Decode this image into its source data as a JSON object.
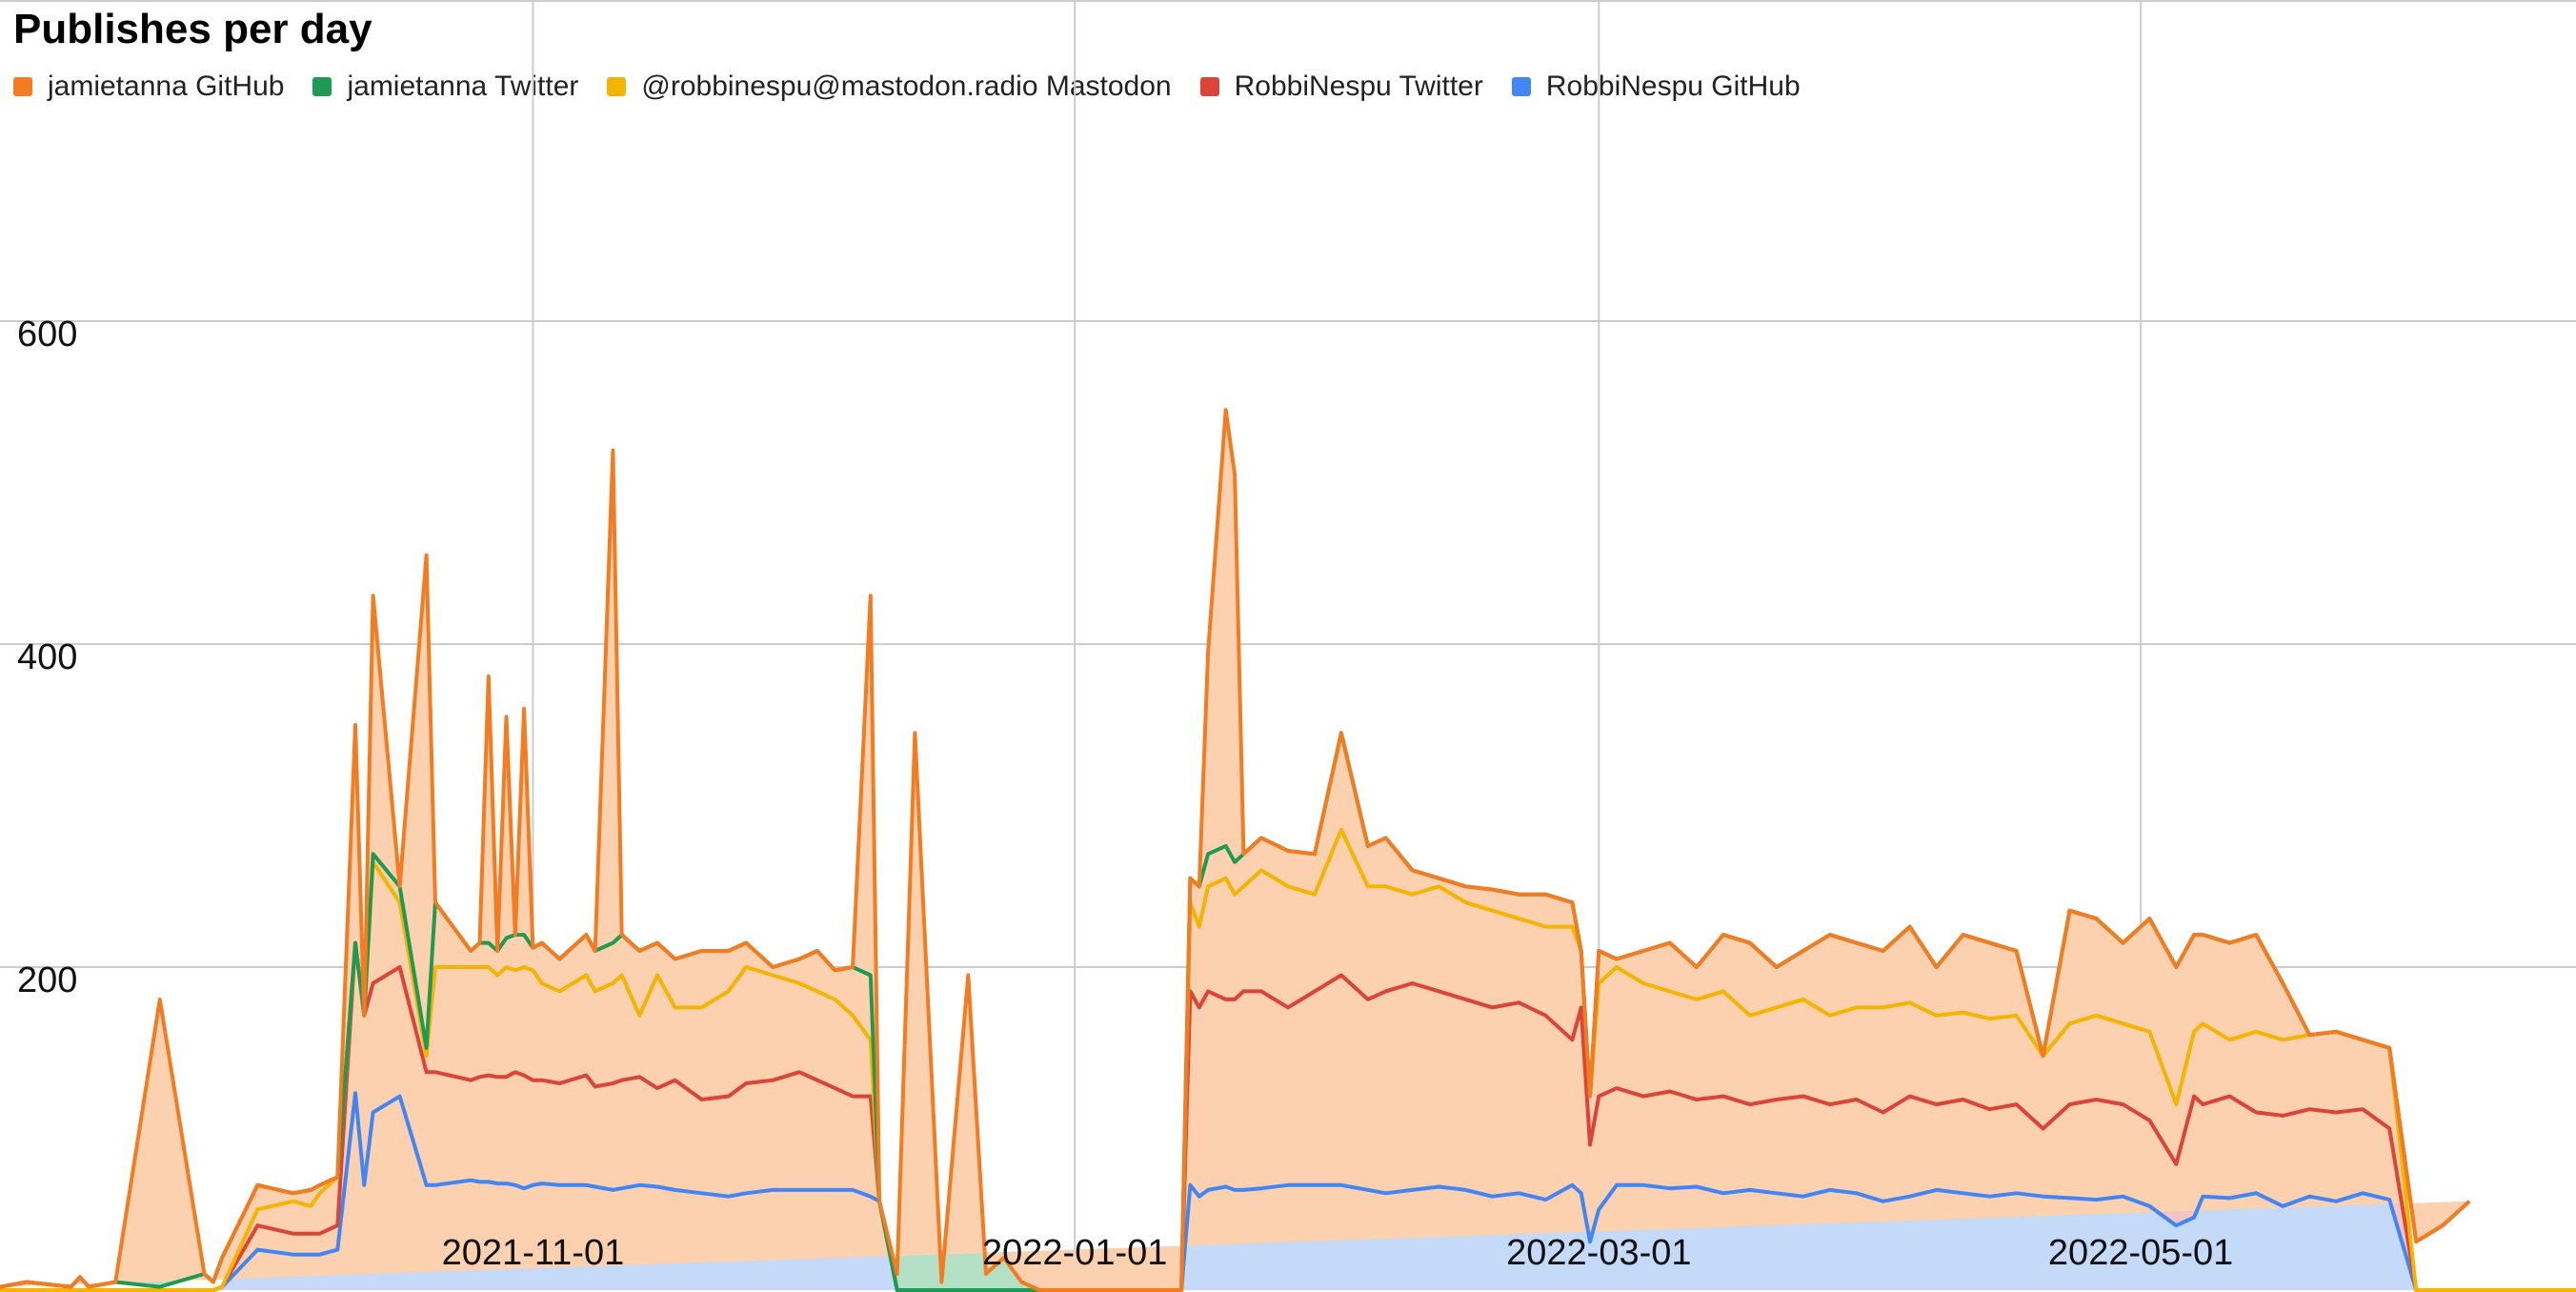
{
  "chart_data": {
    "type": "area",
    "stacked": true,
    "title": "Publishes per day",
    "legend_position": "top-left",
    "grid": true,
    "xlim": [
      "2021-09-02",
      "2022-06-19"
    ],
    "ylim": [
      0,
      800
    ],
    "yticks": [
      200,
      400,
      600
    ],
    "xticks": [
      "2021-11-01",
      "2022-01-01",
      "2022-03-01",
      "2022-05-01"
    ],
    "series_order_bottom_to_top": [
      "RobbiNespu GitHub",
      "RobbiNespu Twitter",
      "@robbinespu@mastodon.radio Mastodon",
      "jamietanna Twitter",
      "jamietanna GitHub"
    ],
    "series": [
      {
        "name": "jamietanna GitHub",
        "color": "#f47b20",
        "fill": "#fbd1b0"
      },
      {
        "name": "jamietanna Twitter",
        "color": "#1e9a52",
        "fill": "#b4e0c6"
      },
      {
        "name": "@robbinespu@mastodon.radio Mastodon",
        "color": "#f4b400",
        "fill": "#fbe7b0"
      },
      {
        "name": "RobbiNespu Twitter",
        "color": "#db4437",
        "fill": "#f4c4c1"
      },
      {
        "name": "RobbiNespu GitHub",
        "color": "#4285f4",
        "fill": "#c5d9f9"
      }
    ],
    "cumulative_tops": {
      "description": "stacked totals per date (segment boundaries)",
      "dates": [
        "2021-09-02",
        "2021-09-05",
        "2021-09-10",
        "2021-09-11",
        "2021-09-12",
        "2021-09-15",
        "2021-09-20",
        "2021-09-25",
        "2021-09-26",
        "2021-09-27",
        "2021-10-01",
        "2021-10-05",
        "2021-10-07",
        "2021-10-08",
        "2021-10-10",
        "2021-10-12",
        "2021-10-13",
        "2021-10-14",
        "2021-10-17",
        "2021-10-20",
        "2021-10-21",
        "2021-10-25",
        "2021-10-26",
        "2021-10-27",
        "2021-10-28",
        "2021-10-29",
        "2021-10-30",
        "2021-10-31",
        "2021-11-01",
        "2021-11-02",
        "2021-11-04",
        "2021-11-07",
        "2021-11-08",
        "2021-11-10",
        "2021-11-11",
        "2021-11-13",
        "2021-11-15",
        "2021-11-17",
        "2021-11-20",
        "2021-11-23",
        "2021-11-25",
        "2021-11-28",
        "2021-12-01",
        "2021-12-03",
        "2021-12-05",
        "2021-12-07",
        "2021-12-09",
        "2021-12-10",
        "2021-12-12",
        "2021-12-14",
        "2021-12-17",
        "2021-12-20",
        "2021-12-22",
        "2021-12-24",
        "2021-12-26",
        "2021-12-28",
        "2021-12-31",
        "2022-01-01",
        "2022-01-03",
        "2022-01-05",
        "2022-01-07",
        "2022-01-10",
        "2022-01-13",
        "2022-01-14",
        "2022-01-15",
        "2022-01-16",
        "2022-01-18",
        "2022-01-19",
        "2022-01-20",
        "2022-01-22",
        "2022-01-25",
        "2022-01-28",
        "2022-01-31",
        "2022-02-03",
        "2022-02-05",
        "2022-02-08",
        "2022-02-11",
        "2022-02-14",
        "2022-02-17",
        "2022-02-20",
        "2022-02-23",
        "2022-02-26",
        "2022-02-27",
        "2022-02-28",
        "2022-03-01",
        "2022-03-03",
        "2022-03-06",
        "2022-03-09",
        "2022-03-12",
        "2022-03-15",
        "2022-03-18",
        "2022-03-21",
        "2022-03-24",
        "2022-03-27",
        "2022-03-30",
        "2022-04-02",
        "2022-04-05",
        "2022-04-08",
        "2022-04-11",
        "2022-04-14",
        "2022-04-17",
        "2022-04-20",
        "2022-04-23",
        "2022-04-26",
        "2022-04-29",
        "2022-05-02",
        "2022-05-05",
        "2022-05-07",
        "2022-05-08",
        "2022-05-11",
        "2022-05-14",
        "2022-05-17",
        "2022-05-20",
        "2022-05-23",
        "2022-05-26",
        "2022-05-29",
        "2022-06-01",
        "2022-06-04",
        "2022-06-07",
        "2022-06-10",
        "2022-06-13",
        "2022-06-16",
        "2022-06-19"
      ],
      "robbinespu_github": [
        0,
        0,
        0,
        0,
        0,
        0,
        0,
        0,
        0,
        2,
        25,
        22,
        22,
        22,
        25,
        122,
        65,
        110,
        120,
        65,
        65,
        68,
        67,
        67,
        66,
        66,
        65,
        63,
        65,
        66,
        65,
        65,
        64,
        62,
        63,
        65,
        64,
        62,
        60,
        58,
        60,
        62,
        62,
        62,
        62,
        62,
        58,
        55,
        0,
        0,
        0,
        0,
        0,
        0,
        0,
        0,
        0,
        0,
        0,
        0,
        0,
        0,
        0,
        65,
        58,
        62,
        64,
        62,
        62,
        63,
        65,
        65,
        65,
        62,
        60,
        62,
        64,
        62,
        58,
        60,
        56,
        65,
        60,
        30,
        50,
        65,
        65,
        63,
        64,
        60,
        62,
        60,
        58,
        62,
        60,
        55,
        58,
        62,
        60,
        58,
        60,
        58,
        57,
        56,
        58,
        52,
        40,
        45,
        58,
        57,
        60,
        52,
        58,
        55,
        60,
        56,
        0,
        0,
        0,
        0,
        0,
        0,
        0
      ],
      "robbinespu_twitter": [
        0,
        0,
        0,
        0,
        0,
        0,
        0,
        0,
        0,
        2,
        40,
        35,
        35,
        35,
        40,
        215,
        170,
        190,
        200,
        135,
        135,
        130,
        132,
        133,
        132,
        132,
        135,
        133,
        130,
        130,
        128,
        133,
        126,
        128,
        130,
        132,
        125,
        130,
        118,
        120,
        128,
        130,
        135,
        130,
        125,
        120,
        120,
        0,
        0,
        0,
        0,
        0,
        0,
        0,
        0,
        0,
        0,
        0,
        0,
        0,
        0,
        0,
        0,
        185,
        175,
        185,
        180,
        180,
        185,
        185,
        175,
        185,
        195,
        180,
        185,
        190,
        185,
        180,
        175,
        178,
        170,
        155,
        175,
        90,
        120,
        125,
        120,
        123,
        118,
        120,
        115,
        118,
        120,
        115,
        118,
        110,
        120,
        115,
        118,
        112,
        115,
        100,
        115,
        118,
        115,
        105,
        78,
        120,
        115,
        120,
        110,
        108,
        112,
        110,
        112,
        100,
        0,
        0,
        0,
        0,
        0,
        0,
        0
      ],
      "mastodon": [
        0,
        0,
        0,
        0,
        0,
        0,
        0,
        0,
        0,
        2,
        50,
        55,
        52,
        60,
        70,
        145,
        140,
        265,
        240,
        145,
        200,
        200,
        200,
        200,
        195,
        200,
        198,
        200,
        198,
        190,
        185,
        195,
        185,
        190,
        195,
        170,
        195,
        175,
        175,
        185,
        200,
        195,
        190,
        185,
        180,
        170,
        155,
        20,
        0,
        0,
        0,
        0,
        0,
        0,
        0,
        0,
        0,
        0,
        0,
        0,
        0,
        0,
        0,
        240,
        225,
        250,
        255,
        245,
        250,
        260,
        250,
        245,
        285,
        250,
        250,
        245,
        250,
        240,
        235,
        230,
        225,
        225,
        210,
        120,
        190,
        200,
        190,
        185,
        180,
        185,
        170,
        175,
        180,
        170,
        175,
        175,
        178,
        170,
        172,
        168,
        170,
        145,
        165,
        170,
        165,
        160,
        115,
        160,
        165,
        155,
        160,
        155,
        158,
        160,
        155,
        150,
        0,
        0,
        0,
        0,
        0,
        0,
        0
      ],
      "jamietanna_twitter": [
        2,
        5,
        2,
        8,
        2,
        5,
        2,
        10,
        5,
        20,
        65,
        60,
        62,
        65,
        70,
        150,
        140,
        270,
        250,
        150,
        240,
        210,
        215,
        215,
        210,
        218,
        220,
        220,
        212,
        215,
        205,
        220,
        210,
        215,
        220,
        210,
        215,
        205,
        210,
        210,
        215,
        200,
        205,
        210,
        198,
        200,
        195,
        25,
        0,
        0,
        0,
        0,
        0,
        0,
        0,
        0,
        0,
        0,
        0,
        0,
        0,
        0,
        0,
        255,
        250,
        270,
        275,
        265,
        270,
        280,
        272,
        270,
        345,
        275,
        280,
        260,
        255,
        250,
        248,
        245,
        245,
        240,
        200,
        100,
        210,
        205,
        210,
        215,
        200,
        220,
        215,
        200,
        210,
        220,
        215,
        210,
        225,
        200,
        220,
        215,
        210,
        120,
        235,
        230,
        215,
        230,
        200,
        220,
        220,
        215,
        220,
        190,
        10,
        40,
        25,
        35,
        30,
        40,
        55
      ],
      "jamietanna_github": [
        2,
        5,
        2,
        8,
        2,
        5,
        180,
        10,
        5,
        20,
        65,
        60,
        62,
        65,
        70,
        350,
        140,
        430,
        250,
        455,
        240,
        210,
        215,
        380,
        210,
        355,
        220,
        360,
        212,
        215,
        205,
        220,
        210,
        520,
        220,
        210,
        215,
        205,
        210,
        210,
        215,
        200,
        205,
        210,
        198,
        200,
        430,
        25,
        10,
        345,
        5,
        195,
        10,
        20,
        5,
        0,
        0,
        0,
        0,
        0,
        0,
        0,
        0,
        255,
        250,
        395,
        545,
        505,
        270,
        280,
        272,
        270,
        345,
        275,
        280,
        260,
        255,
        250,
        248,
        245,
        245,
        240,
        200,
        100,
        210,
        205,
        210,
        215,
        200,
        220,
        215,
        200,
        210,
        220,
        215,
        210,
        225,
        200,
        220,
        215,
        210,
        120,
        235,
        230,
        215,
        230,
        200,
        220,
        220,
        215,
        220,
        190,
        10,
        40,
        25,
        35,
        30,
        40,
        55
      ]
    }
  }
}
